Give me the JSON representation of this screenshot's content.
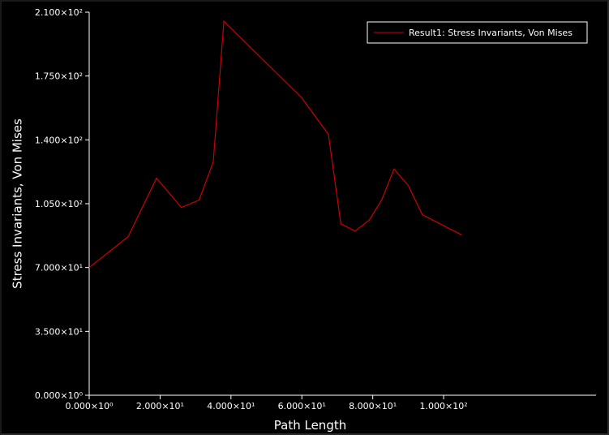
{
  "chart_data": {
    "type": "line",
    "title": "",
    "xlabel": "Path Length",
    "ylabel": "Stress Invariants, Von Mises",
    "xlim": [
      0,
      143
    ],
    "ylim": [
      0,
      210
    ],
    "x_ticks": [
      0,
      20,
      40,
      60,
      80,
      100
    ],
    "x_tick_labels": [
      "0.000×10⁰",
      "2.000×10¹",
      "4.000×10¹",
      "6.000×10¹",
      "8.000×10¹",
      "1.000×10²"
    ],
    "y_ticks": [
      0,
      35,
      70,
      105,
      140,
      175,
      210
    ],
    "y_tick_labels": [
      "0.000×10⁰",
      "3.500×10¹",
      "7.000×10¹",
      "1.050×10²",
      "1.400×10²",
      "1.750×10²",
      "2.100×10²"
    ],
    "grid": false,
    "legend_position": "top-right",
    "colors": {
      "background": "#000000",
      "axis": "#ffffff",
      "series": "#cc0000"
    },
    "series": [
      {
        "name": "Result1: Stress Invariants, Von Mises",
        "color": "#cc0000",
        "x": [
          0,
          11,
          19,
          26,
          31,
          35,
          38,
          60,
          67.5,
          71,
          75,
          79,
          82.5,
          86,
          90,
          94,
          105
        ],
        "y": [
          70,
          87,
          119,
          103,
          107,
          128,
          205,
          163,
          143,
          94,
          90,
          96,
          107,
          124,
          115,
          99,
          88
        ]
      }
    ]
  }
}
